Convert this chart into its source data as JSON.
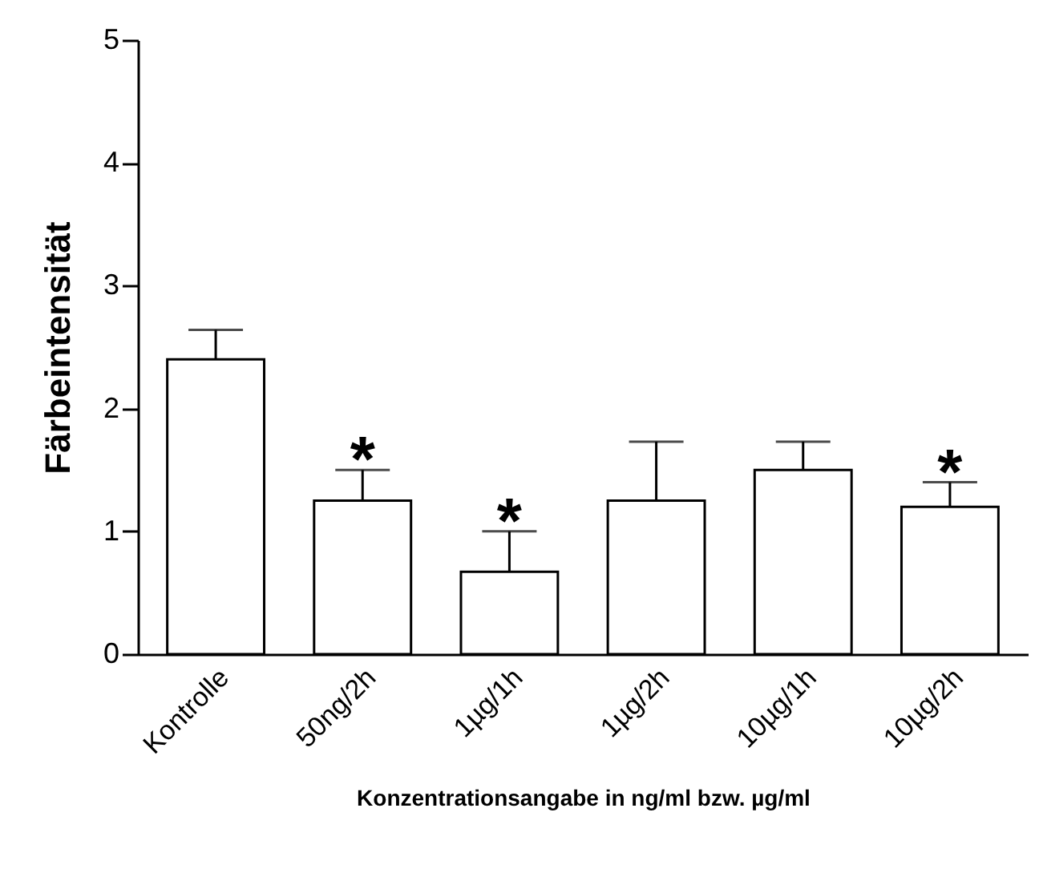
{
  "chart_data": {
    "type": "bar",
    "categories": [
      "Kontrolle",
      "50ng/2h",
      "1µg/1h",
      "1µg/2h",
      "10µg/1h",
      "10µg/2h"
    ],
    "values": [
      2.4,
      1.25,
      0.67,
      1.25,
      1.5,
      1.2
    ],
    "errors": [
      [
        2.4,
        2.64
      ],
      [
        1.25,
        1.5
      ],
      [
        0.67,
        1.0
      ],
      [
        1.25,
        1.73
      ],
      [
        1.5,
        1.73
      ],
      [
        1.2,
        1.4
      ]
    ],
    "color": "#ffffff",
    "xlabel": "Konzentrationsangabe in ng/ml bzw. µg/ml",
    "ylabel": "Färbeintensität",
    "ylim": [
      0,
      5
    ],
    "yticks": [
      0,
      1,
      2,
      3,
      4,
      5
    ],
    "grid": false,
    "annotations": [
      {
        "text": "*",
        "x": "50ng/2h",
        "y": 1.5
      },
      {
        "text": "*",
        "x": "1µg/1h",
        "y": 1.0
      },
      {
        "text": "*",
        "x": "10µg/2h",
        "y": 1.4
      }
    ]
  }
}
